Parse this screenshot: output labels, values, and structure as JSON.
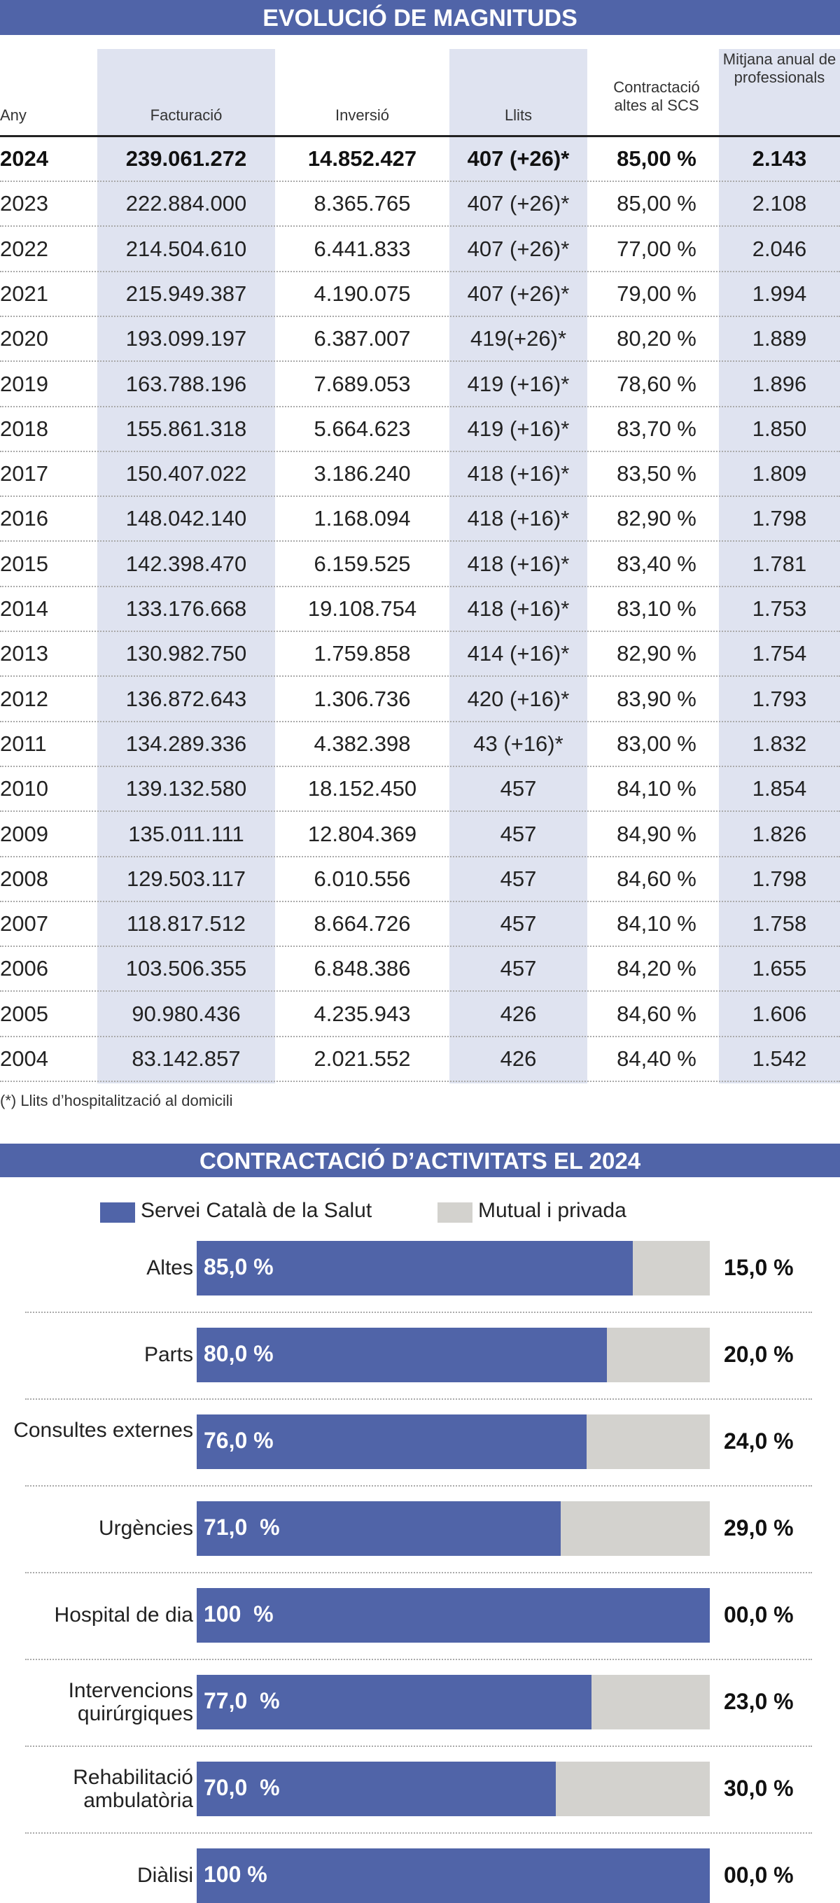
{
  "table": {
    "title": "EVOLUCIÓ DE MAGNITUDS",
    "headers": [
      "Any",
      "Facturació",
      "Inversió",
      "Llits",
      "Contractació altes al SCS",
      "Mitjana anual de professionals"
    ],
    "rows": [
      [
        "2024",
        "239.061.272",
        "14.852.427",
        "407 (+26)*",
        "85,00 %",
        "2.143"
      ],
      [
        "2023",
        "222.884.000",
        "8.365.765",
        "407 (+26)*",
        "85,00 %",
        "2.108"
      ],
      [
        "2022",
        "214.504.610",
        "6.441.833",
        "407 (+26)*",
        "77,00 %",
        "2.046"
      ],
      [
        "2021",
        "215.949.387",
        "4.190.075",
        "407 (+26)*",
        "79,00 %",
        "1.994"
      ],
      [
        "2020",
        "193.099.197",
        "6.387.007",
        "419(+26)*",
        "80,20 %",
        "1.889"
      ],
      [
        "2019",
        "163.788.196",
        "7.689.053",
        "419 (+16)*",
        "78,60 %",
        "1.896"
      ],
      [
        "2018",
        "155.861.318",
        "5.664.623",
        "419 (+16)*",
        "83,70 %",
        "1.850"
      ],
      [
        "2017",
        "150.407.022",
        "3.186.240",
        "418 (+16)*",
        "83,50 %",
        "1.809"
      ],
      [
        "2016",
        "148.042.140",
        "1.168.094",
        "418 (+16)*",
        "82,90 %",
        "1.798"
      ],
      [
        "2015",
        "142.398.470",
        "6.159.525",
        "418 (+16)*",
        "83,40 %",
        "1.781"
      ],
      [
        "2014",
        "133.176.668",
        "19.108.754",
        "418 (+16)*",
        "83,10 %",
        "1.753"
      ],
      [
        "2013",
        "130.982.750",
        "1.759.858",
        "414 (+16)*",
        "82,90 %",
        "1.754"
      ],
      [
        "2012",
        "136.872.643",
        "1.306.736",
        "420 (+16)*",
        "83,90 %",
        "1.793"
      ],
      [
        "2011",
        "134.289.336",
        "4.382.398",
        "43 (+16)*",
        "83,00 %",
        "1.832"
      ],
      [
        "2010",
        "139.132.580",
        "18.152.450",
        "457",
        "84,10 %",
        "1.854"
      ],
      [
        "2009",
        "135.011.111",
        "12.804.369",
        "457",
        "84,90 %",
        "1.826"
      ],
      [
        "2008",
        "129.503.117",
        "6.010.556",
        "457",
        "84,60 %",
        "1.798"
      ],
      [
        "2007",
        "118.817.512",
        "8.664.726",
        "457",
        "84,10 %",
        "1.758"
      ],
      [
        "2006",
        "103.506.355",
        "6.848.386",
        "457",
        "84,20 %",
        "1.655"
      ],
      [
        "2005",
        "90.980.436",
        "4.235.943",
        "426",
        "84,60 %",
        "1.606"
      ],
      [
        "2004",
        "83.142.857",
        "2.021.552",
        "426",
        "84,40 %",
        "1.542"
      ]
    ],
    "footnote": "(*) Llits d’hospitalització al domicili"
  },
  "chart_data": {
    "type": "bar",
    "stacked": true,
    "orientation": "horizontal",
    "title": "CONTRACTACIÓ D’ACTIVITATS EL 2024",
    "legend": "top",
    "categories": [
      "Altes",
      "Parts",
      "Consultes externes",
      "Urgències",
      "Hospital de dia",
      "Intervencions quirúrgiques",
      "Rehabilitació ambulatòria",
      "Diàlisi"
    ],
    "series": [
      {
        "name": "Servei Català de la Salut",
        "color": "#5064a8",
        "values": [
          85,
          80,
          76,
          71,
          100,
          77,
          70,
          100
        ],
        "labels": [
          "85,0 %",
          "80,0 %",
          "76,0 %",
          "71,0  %",
          "100  %",
          "77,0  %",
          "70,0  %",
          "100 %"
        ]
      },
      {
        "name": "Mutual i privada",
        "color": "#d3d2ce",
        "values": [
          15,
          20,
          24,
          29,
          0,
          23,
          30,
          0
        ],
        "labels": [
          "15,0 %",
          "20,0 %",
          "24,0 %",
          "29,0 %",
          "00,0 %",
          "23,0 %",
          "30,0 %",
          "00,0 %"
        ]
      }
    ],
    "xlim": [
      0,
      100
    ]
  },
  "colors": {
    "accent": "#5064a8",
    "column_shade": "#dfe3f0",
    "other": "#d3d2ce"
  }
}
